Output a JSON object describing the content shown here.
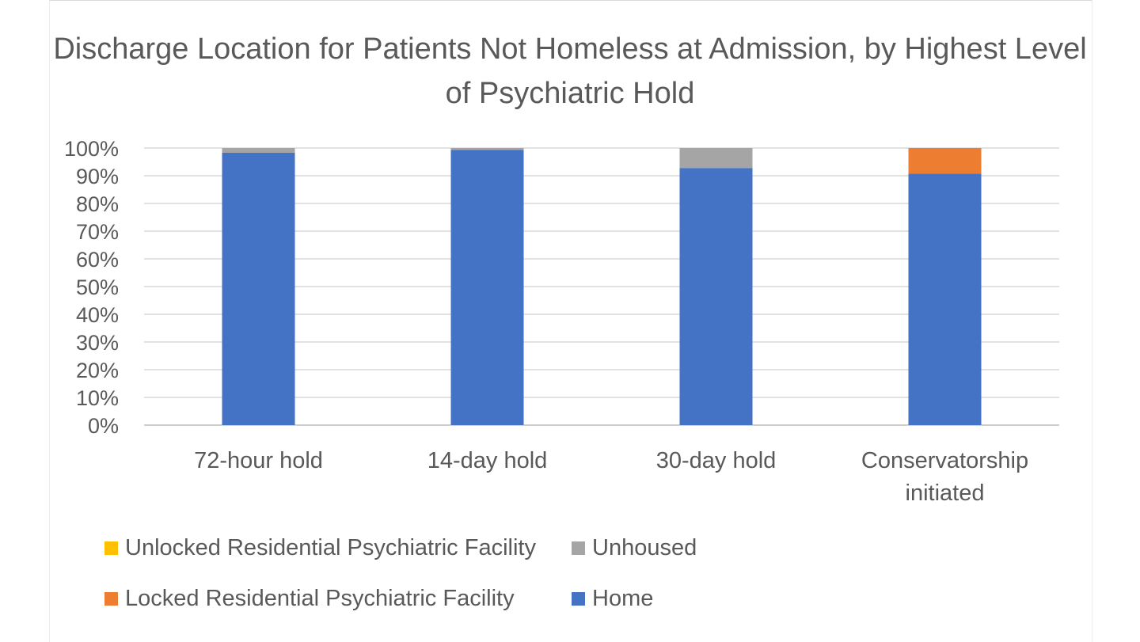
{
  "chart_data": {
    "type": "bar",
    "stacked": true,
    "title": "Discharge Location for Patients Not Homeless at Admission, by Highest Level of Psychiatric Hold",
    "categories": [
      "72-hour hold",
      "14-day hold",
      "30-day hold",
      "Conservatorship initiated"
    ],
    "series": [
      {
        "name": "Home",
        "color": "#4472C4",
        "values": [
          98.3,
          99.3,
          92.8,
          90.8
        ]
      },
      {
        "name": "Unhoused",
        "color": "#A5A5A5",
        "values": [
          1.7,
          0.7,
          7.2,
          0
        ]
      },
      {
        "name": "Unlocked Residential Psychiatric Facility",
        "color": "#FFC000",
        "values": [
          0,
          0,
          0,
          0
        ]
      },
      {
        "name": "Locked Residential Psychiatric Facility",
        "color": "#ED7D31",
        "values": [
          0,
          0,
          0,
          9.2
        ]
      }
    ],
    "ylim": [
      0,
      100
    ],
    "yticks": [
      "0%",
      "10%",
      "20%",
      "30%",
      "40%",
      "50%",
      "60%",
      "70%",
      "80%",
      "90%",
      "100%"
    ],
    "grid": true,
    "legend_position": "bottom",
    "legend_order": [
      "Unlocked Residential Psychiatric Facility",
      "Unhoused",
      "Locked Residential Psychiatric Facility",
      "Home"
    ]
  }
}
